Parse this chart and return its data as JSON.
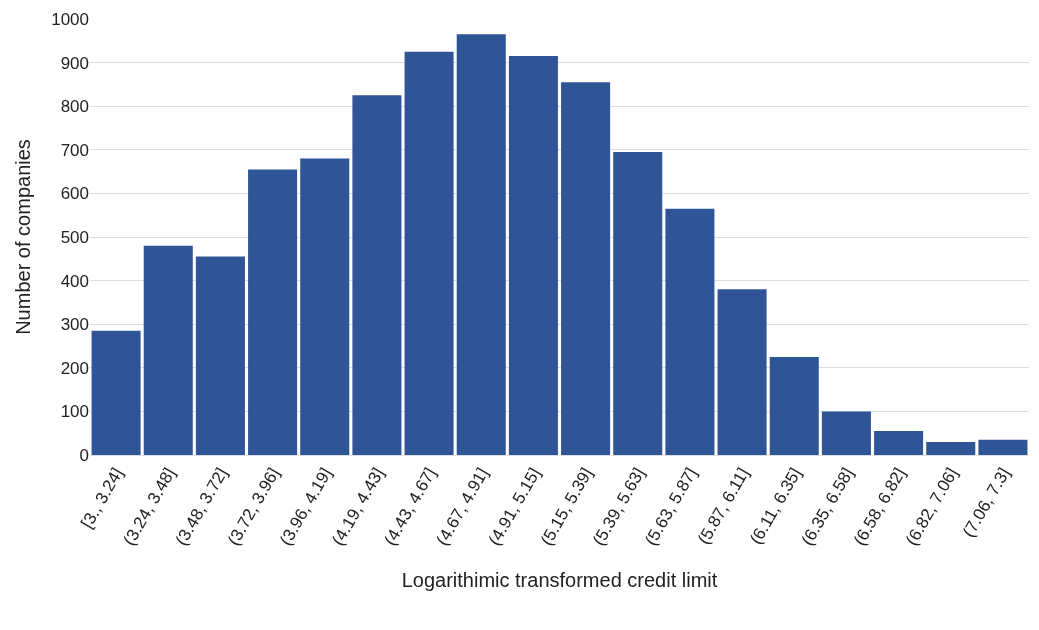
{
  "chart_data": {
    "type": "bar",
    "xlabel": "Logarithimic transformed credit limit",
    "ylabel": "Number of companies",
    "categories": [
      "[3., 3.24]",
      "(3.24, 3.48]",
      "(3.48, 3.72]",
      "(3.72, 3.96]",
      "(3.96, 4.19]",
      "(4.19, 4.43]",
      "(4.43, 4.67]",
      "(4.67, 4.91]",
      "(4.91, 5.15]",
      "(5.15, 5.39]",
      "(5.39, 5.63]",
      "(5.63, 5.87]",
      "(5.87, 6.11]",
      "(6.11, 6.35]",
      "(6.35, 6.58]",
      "(6.58, 6.82]",
      "(6.82, 7.06]",
      "(7.06, 7.3]"
    ],
    "values": [
      285,
      480,
      455,
      655,
      680,
      825,
      925,
      965,
      915,
      855,
      695,
      565,
      380,
      225,
      100,
      55,
      30,
      35
    ],
    "color": "#2f5597",
    "ylim": [
      0,
      1000
    ],
    "yticks": [
      0,
      100,
      200,
      300,
      400,
      500,
      600,
      700,
      800,
      900,
      1000
    ],
    "grid": "y"
  }
}
